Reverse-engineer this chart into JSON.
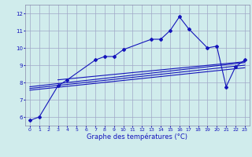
{
  "background_color": "#d0ecec",
  "grid_color": "#a0a8c8",
  "line_color": "#1414bb",
  "xlabel": "Graphe des températures (°C)",
  "xlim": [
    -0.5,
    23.5
  ],
  "ylim": [
    5.5,
    12.5
  ],
  "yticks": [
    6,
    7,
    8,
    9,
    10,
    11,
    12
  ],
  "xticks": [
    0,
    1,
    2,
    3,
    4,
    5,
    6,
    7,
    8,
    9,
    10,
    11,
    12,
    13,
    14,
    15,
    16,
    17,
    18,
    19,
    20,
    21,
    22,
    23
  ],
  "curve1_x": [
    0,
    1,
    3,
    4,
    7,
    8,
    9,
    10,
    13,
    14,
    15,
    16,
    17,
    19,
    20,
    21,
    22,
    23
  ],
  "curve1_y": [
    5.8,
    6.0,
    7.8,
    8.15,
    9.3,
    9.5,
    9.5,
    9.9,
    10.5,
    10.5,
    11.0,
    11.8,
    11.1,
    10.0,
    10.1,
    7.75,
    8.9,
    9.3
  ],
  "line1_x": [
    0,
    23
  ],
  "line1_y": [
    7.75,
    9.15
  ],
  "line2_x": [
    0,
    23
  ],
  "line2_y": [
    7.55,
    8.85
  ],
  "line3_x": [
    3,
    23
  ],
  "line3_y": [
    8.15,
    9.2
  ],
  "line4_x": [
    0,
    23
  ],
  "line4_y": [
    7.65,
    9.0
  ]
}
